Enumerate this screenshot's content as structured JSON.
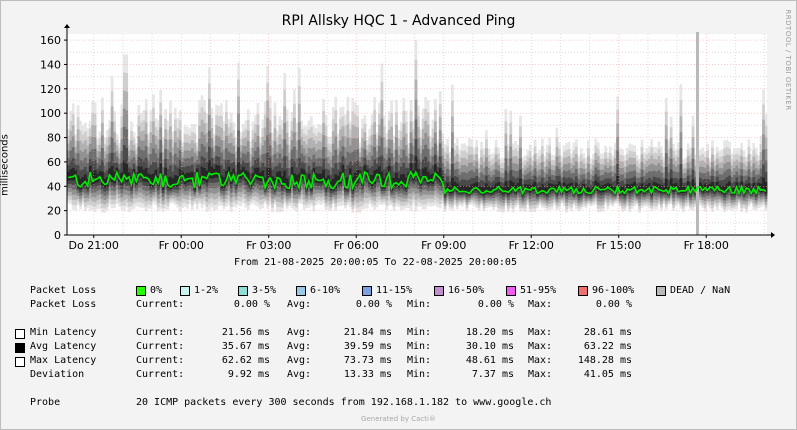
{
  "chart_data": {
    "type": "area",
    "title": "RPI Allsky HQC 1 - Advanced Ping",
    "ylabel": "milliseconds",
    "ylim": [
      0,
      165
    ],
    "yticks": [
      0,
      20,
      40,
      60,
      80,
      100,
      120,
      140,
      160
    ],
    "xticks": [
      "Do 21:00",
      "Fr 00:00",
      "Fr 03:00",
      "Fr 06:00",
      "Fr 09:00",
      "Fr 12:00",
      "Fr 15:00",
      "Fr 18:00"
    ],
    "xrange_hours": [
      20.0833,
      44.0833
    ],
    "grid": true,
    "range_text": "From 21-08-2025 20:00:05 To 22-08-2025 20:00:05",
    "series": [
      {
        "name": "Avg Latency",
        "key": "avg",
        "color": "#00ee00"
      }
    ],
    "keypoints": {
      "avg_early": 45,
      "avg_late": 37,
      "max_early": 75,
      "max_late": 62,
      "spike_max": 148.28,
      "min_floor": 18.2,
      "dead_hour": 41.7
    }
  },
  "colors": {
    "loss_0": "#26ff00",
    "loss_1_2": "#c8f5f0",
    "loss_3_5": "#8fded7",
    "loss_6_10": "#9cc8e8",
    "loss_11_15": "#7fa0e0",
    "loss_16_50": "#bf8fcf",
    "loss_51_95": "#ef5cf0",
    "loss_96_100": "#f07070",
    "dead": "#b9b9b9",
    "grid_major": "#ff9a9a",
    "grid_minor": "#dcdcdc"
  },
  "legend": {
    "packet_loss_label": "Packet Loss",
    "loss_items": [
      {
        "label": "0%",
        "color_key": "loss_0"
      },
      {
        "label": "1-2%",
        "color_key": "loss_1_2"
      },
      {
        "label": "3-5%",
        "color_key": "loss_3_5"
      },
      {
        "label": "6-10%",
        "color_key": "loss_6_10"
      },
      {
        "label": "11-15%",
        "color_key": "loss_11_15"
      },
      {
        "label": "16-50%",
        "color_key": "loss_16_50"
      },
      {
        "label": "51-95%",
        "color_key": "loss_51_95"
      },
      {
        "label": "96-100%",
        "color_key": "loss_96_100"
      },
      {
        "label": "DEAD / NaN",
        "color_key": "dead"
      }
    ],
    "loss_stats": {
      "label": "Packet Loss",
      "current": "0.00 %",
      "avg": "0.00 %",
      "min": "0.00 %",
      "max": "0.00 %"
    },
    "stat_labels": {
      "current": "Current:",
      "avg": "Avg:",
      "min": "Min:",
      "max": "Max:"
    },
    "rows": [
      {
        "label": "Min Latency",
        "swatch": "#ffffff",
        "current": "21.56 ms",
        "avg": "21.84 ms",
        "min": "18.20 ms",
        "max": "28.61 ms"
      },
      {
        "label": "Avg Latency",
        "swatch": "#000000",
        "current": "35.67 ms",
        "avg": "39.59 ms",
        "min": "30.10 ms",
        "max": "63.22 ms"
      },
      {
        "label": "Max Latency",
        "swatch": "#ffffff",
        "current": "62.62 ms",
        "avg": "73.73 ms",
        "min": "48.61 ms",
        "max": "148.28 ms"
      },
      {
        "label": "Deviation",
        "swatch": "",
        "current": "9.92 ms",
        "avg": "13.33 ms",
        "min": "7.37 ms",
        "max": "41.05 ms"
      }
    ],
    "probe_label": "Probe",
    "probe_text": "20 ICMP packets every 300 seconds from 192.168.1.182 to www.google.ch"
  },
  "footer": "Generated by Cacti®",
  "side_brand": "RRDTOOL / TOBI OETIKER"
}
